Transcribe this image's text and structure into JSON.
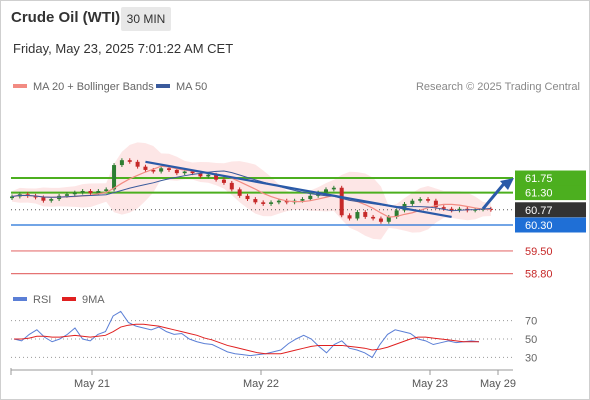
{
  "header": {
    "title": "Crude Oil (WTI)",
    "timeframe": "30 MIN",
    "datetime": "Friday, May 23, 2025 7:01:22 AM CET"
  },
  "legend": {
    "ma20": "MA 20 + Bollinger Bands",
    "ma50": "MA 50",
    "rsi": "RSI",
    "rsi_ma": "9MA",
    "credit": "Research © 2025 Trading Central"
  },
  "colors": {
    "candle_up": "#2e7d32",
    "candle_down": "#c62828",
    "ma20": "#f28b82",
    "ma50": "#3a5a9c",
    "bollinger_fill": "#fde0e0",
    "resistance": "#4caf1f",
    "support": "#1f6fd6",
    "target_low": "#e57373",
    "price_tag": "#333333",
    "rsi": "#5b7fd6",
    "rsi_ma": "#e02020",
    "trend_arrow": "#2a5aa8"
  },
  "chart_data": [
    {
      "type": "candlestick",
      "title": "Crude Oil (WTI)",
      "timeframe": "30 MIN",
      "x_labels": [
        "May 21",
        "May 22",
        "May 23",
        "May 29"
      ],
      "price_ticks": [
        61.75,
        61.3,
        60.77,
        60.3,
        59.5,
        58.8
      ],
      "current_price": 60.77,
      "levels": [
        {
          "value": 61.75,
          "kind": "resistance"
        },
        {
          "value": 61.3,
          "kind": "resistance"
        },
        {
          "value": 60.3,
          "kind": "support"
        },
        {
          "value": 59.5,
          "kind": "target"
        },
        {
          "value": 58.8,
          "kind": "target"
        }
      ],
      "series": [
        {
          "name": "MA 20 + Bollinger Bands"
        },
        {
          "name": "MA 50"
        }
      ],
      "close_approx": [
        61.18,
        61.25,
        61.2,
        61.15,
        61.05,
        61.1,
        61.2,
        61.25,
        61.3,
        61.35,
        61.28,
        61.35,
        61.4,
        62.15,
        62.3,
        62.25,
        62.1,
        62.0,
        61.95,
        62.05,
        62.0,
        61.9,
        61.95,
        61.9,
        61.8,
        61.85,
        61.7,
        61.6,
        61.4,
        61.2,
        61.1,
        61.0,
        60.95,
        61.0,
        61.05,
        61.0,
        61.05,
        61.1,
        61.2,
        61.3,
        61.4,
        61.45,
        60.6,
        60.5,
        60.7,
        60.55,
        60.5,
        60.4,
        60.55,
        60.75,
        60.95,
        61.05,
        61.1,
        61.05,
        60.85,
        60.8,
        60.75,
        60.8,
        60.75,
        60.78,
        60.8,
        60.77
      ],
      "ylim": [
        58.6,
        62.6
      ]
    },
    {
      "type": "line",
      "title": "RSI",
      "series": [
        {
          "name": "RSI",
          "values": [
            50,
            48,
            55,
            60,
            52,
            47,
            50,
            55,
            62,
            50,
            48,
            55,
            58,
            75,
            80,
            68,
            64,
            62,
            60,
            63,
            58,
            55,
            56,
            50,
            47,
            45,
            44,
            40,
            36,
            34,
            33,
            32,
            33,
            34,
            36,
            38,
            45,
            50,
            54,
            50,
            42,
            35,
            44,
            48,
            40,
            38,
            35,
            30,
            44,
            55,
            60,
            58,
            56,
            50,
            48,
            44,
            46,
            48,
            46,
            47,
            48,
            47
          ]
        },
        {
          "name": "9MA",
          "values": [
            50,
            50,
            51,
            53,
            53,
            52,
            52,
            53,
            54,
            53,
            52,
            53,
            54,
            58,
            63,
            65,
            66,
            66,
            65,
            64,
            62,
            60,
            58,
            56,
            54,
            51,
            49,
            46,
            43,
            41,
            39,
            37,
            35,
            34,
            34,
            34,
            36,
            38,
            40,
            42,
            43,
            43,
            43,
            43,
            42,
            41,
            40,
            38,
            39,
            41,
            44,
            47,
            50,
            52,
            52,
            51,
            50,
            49,
            48,
            47,
            47,
            47
          ]
        }
      ],
      "y_ticks": [
        70,
        50,
        30
      ],
      "ylim": [
        20,
        80
      ]
    }
  ]
}
